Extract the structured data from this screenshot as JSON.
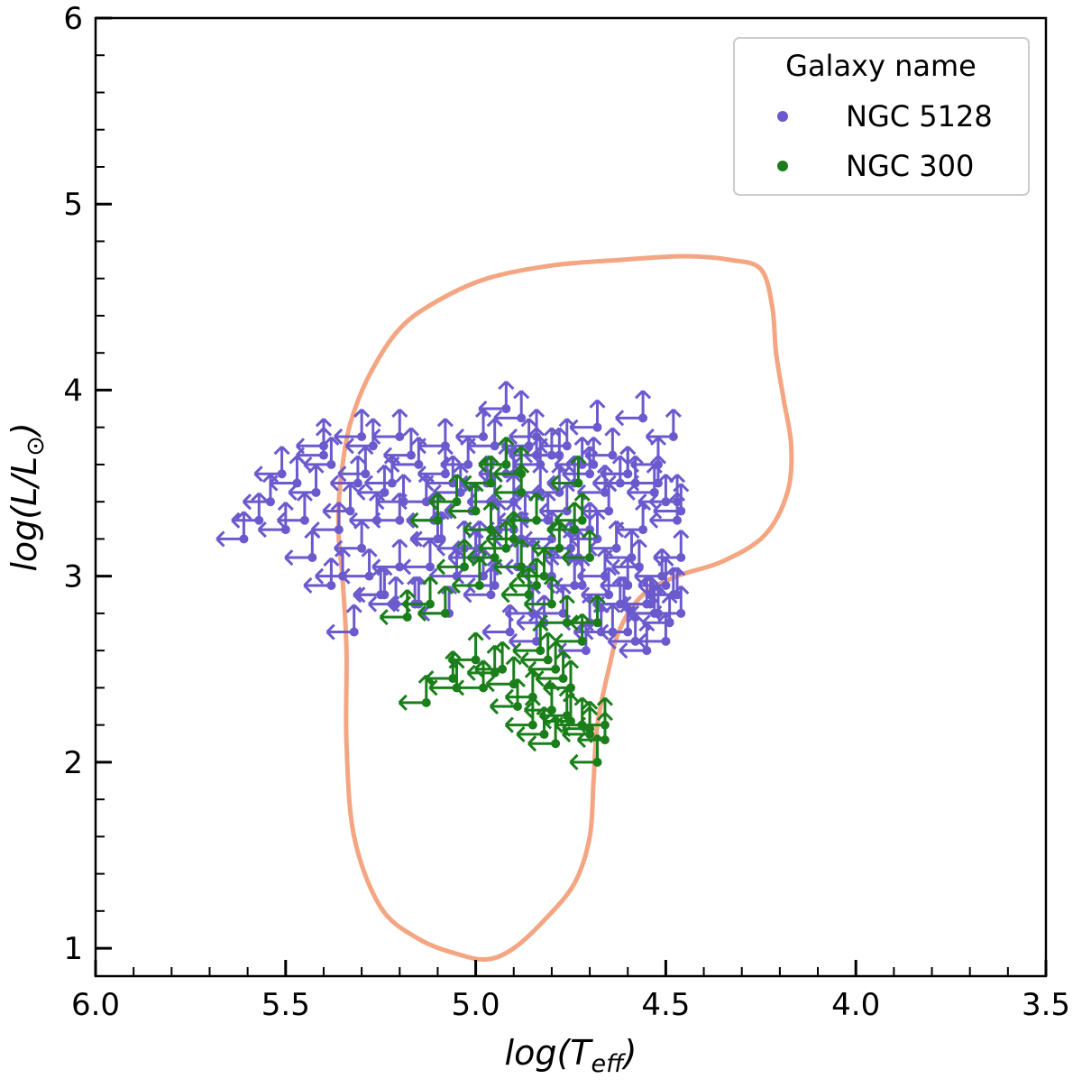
{
  "chart_data": {
    "type": "scatter",
    "title": "",
    "xlabel_prefix": "log(T",
    "xlabel_sub": "eff",
    "xlabel_suffix": ")",
    "ylabel_prefix": "log(L/L",
    "ylabel_sub": "⊙",
    "ylabel_suffix": ")",
    "xlim": [
      6.0,
      3.5
    ],
    "ylim": [
      0.85,
      6.0
    ],
    "x_inverted": true,
    "xticks": [
      "6.0",
      "5.5",
      "5.0",
      "4.5",
      "4.0",
      "3.5"
    ],
    "xtick_values": [
      6.0,
      5.5,
      5.0,
      4.5,
      4.0,
      3.5
    ],
    "yticks": [
      "1",
      "2",
      "3",
      "4",
      "5",
      "6"
    ],
    "ytick_values": [
      1,
      2,
      3,
      4,
      5,
      6
    ],
    "grid": false,
    "legend": {
      "title": "Galaxy name",
      "placement": "top-right",
      "entries": [
        {
          "label": "NGC 5128",
          "color": "#6a5acd"
        },
        {
          "label": "NGC 300",
          "color": "#1a7f1a"
        }
      ]
    },
    "marker_style": "upper-limit arrows (left in Teff, up in L)",
    "contour": {
      "color": "#f4a582",
      "points": [
        [
          5.33,
          3.82
        ],
        [
          5.28,
          4.08
        ],
        [
          5.2,
          4.33
        ],
        [
          5.1,
          4.48
        ],
        [
          4.97,
          4.6
        ],
        [
          4.8,
          4.67
        ],
        [
          4.62,
          4.7
        ],
        [
          4.45,
          4.72
        ],
        [
          4.33,
          4.7
        ],
        [
          4.25,
          4.65
        ],
        [
          4.22,
          4.45
        ],
        [
          4.21,
          4.2
        ],
        [
          4.19,
          3.95
        ],
        [
          4.17,
          3.7
        ],
        [
          4.18,
          3.45
        ],
        [
          4.24,
          3.22
        ],
        [
          4.35,
          3.08
        ],
        [
          4.47,
          3.0
        ],
        [
          4.56,
          2.9
        ],
        [
          4.62,
          2.72
        ],
        [
          4.65,
          2.5
        ],
        [
          4.68,
          2.2
        ],
        [
          4.69,
          1.9
        ],
        [
          4.7,
          1.6
        ],
        [
          4.74,
          1.35
        ],
        [
          4.82,
          1.15
        ],
        [
          4.9,
          1.0
        ],
        [
          4.97,
          0.94
        ],
        [
          5.05,
          0.97
        ],
        [
          5.15,
          1.05
        ],
        [
          5.25,
          1.22
        ],
        [
          5.32,
          1.6
        ],
        [
          5.34,
          2.1
        ],
        [
          5.34,
          2.6
        ],
        [
          5.35,
          2.98
        ],
        [
          5.36,
          3.2
        ],
        [
          5.36,
          3.4
        ],
        [
          5.35,
          3.6
        ],
        [
          5.33,
          3.82
        ]
      ]
    },
    "series": [
      {
        "name": "NGC 5128",
        "color": "#6a5acd",
        "x": [
          5.61,
          5.54,
          5.47,
          5.42,
          5.38,
          5.33,
          5.29,
          5.26,
          5.22,
          5.19,
          5.15,
          5.11,
          5.08,
          5.04,
          5.01,
          4.97,
          4.94,
          4.9,
          4.87,
          4.83,
          4.8,
          4.76,
          4.73,
          4.7,
          4.66,
          4.63,
          4.6,
          4.57,
          4.54,
          4.51,
          4.48,
          4.46,
          5.57,
          5.51,
          5.45,
          5.4,
          5.36,
          5.31,
          5.27,
          5.24,
          5.2,
          5.17,
          5.13,
          5.09,
          5.06,
          5.02,
          4.99,
          4.95,
          4.92,
          4.88,
          4.85,
          4.81,
          4.78,
          4.75,
          4.72,
          4.68,
          4.65,
          4.62,
          4.59,
          4.56,
          4.53,
          4.5,
          4.47,
          5.35,
          5.3,
          5.25,
          5.2,
          5.15,
          5.1,
          5.05,
          5.0,
          4.95,
          4.9,
          4.85,
          4.8,
          4.75,
          4.7,
          4.65,
          4.6,
          4.55,
          4.5,
          4.46,
          5.5,
          5.43,
          5.38,
          5.28,
          5.21,
          5.12,
          5.03,
          4.96,
          4.89,
          4.82,
          4.74,
          4.67,
          4.61,
          4.55,
          4.49,
          5.32,
          5.24,
          5.16,
          5.07,
          4.98,
          4.91,
          4.84,
          4.77,
          4.71,
          4.64,
          4.58,
          4.52,
          4.47,
          4.92,
          4.88,
          4.84,
          4.8,
          4.76,
          4.72,
          4.68,
          4.64,
          4.6,
          4.56,
          4.52,
          4.48,
          4.95,
          4.9,
          4.83,
          4.74,
          4.66,
          4.58,
          4.5,
          4.46,
          4.92,
          4.84,
          4.7,
          4.62,
          4.53,
          4.47,
          5.3,
          5.4,
          5.2,
          5.08,
          4.98,
          4.86,
          4.78,
          4.69,
          4.6,
          4.52
        ],
        "y": [
          3.2,
          3.4,
          3.5,
          3.45,
          3.6,
          3.35,
          3.55,
          3.3,
          3.5,
          3.4,
          3.6,
          3.3,
          3.55,
          3.45,
          3.35,
          3.5,
          3.25,
          3.4,
          3.3,
          3.45,
          3.2,
          3.35,
          3.1,
          3.25,
          3.0,
          3.15,
          2.95,
          3.05,
          2.85,
          3.0,
          2.9,
          3.1,
          3.3,
          3.55,
          3.3,
          3.65,
          3.25,
          3.5,
          3.7,
          3.45,
          3.3,
          3.65,
          3.4,
          3.2,
          3.5,
          3.6,
          3.15,
          3.4,
          3.55,
          3.2,
          3.05,
          3.3,
          3.45,
          3.1,
          2.95,
          3.2,
          3.35,
          2.85,
          3.1,
          3.25,
          2.8,
          2.95,
          3.3,
          3.0,
          3.15,
          2.9,
          3.05,
          2.85,
          3.2,
          3.0,
          3.1,
          2.95,
          3.25,
          2.8,
          3.0,
          3.15,
          2.75,
          2.9,
          2.7,
          2.85,
          2.65,
          2.8,
          3.25,
          3.1,
          2.95,
          3.0,
          2.85,
          3.05,
          3.15,
          2.9,
          3.05,
          2.75,
          2.95,
          2.7,
          2.85,
          2.6,
          2.75,
          2.7,
          2.9,
          2.85,
          2.8,
          3.0,
          2.7,
          2.65,
          2.8,
          2.6,
          2.7,
          2.65,
          2.8,
          2.9,
          3.9,
          3.85,
          3.75,
          3.65,
          3.7,
          3.6,
          3.8,
          3.65,
          3.55,
          3.85,
          3.6,
          3.75,
          3.7,
          3.55,
          3.6,
          3.5,
          3.45,
          3.5,
          3.4,
          3.35,
          3.6,
          3.65,
          3.55,
          3.5,
          3.45,
          3.4,
          3.75,
          3.7,
          3.75,
          3.7,
          3.75,
          3.7,
          3.65,
          3.6,
          3.55,
          3.5
        ]
      },
      {
        "name": "NGC 300",
        "color": "#1a7f1a",
        "x": [
          5.1,
          5.05,
          4.96,
          4.92,
          4.88,
          4.84,
          5.18,
          5.12,
          5.03,
          4.99,
          4.95,
          4.9,
          4.86,
          4.82,
          4.78,
          4.74,
          4.72,
          4.7,
          5.08,
          5.0,
          4.96,
          4.92,
          4.88,
          4.84,
          4.8,
          4.76,
          4.72,
          4.68,
          5.13,
          5.06,
          4.98,
          4.93,
          4.89,
          4.85,
          4.82,
          4.79,
          4.76,
          4.72,
          4.7,
          4.68,
          4.66,
          5.05,
          5.0,
          4.95,
          4.9,
          4.85,
          4.8,
          4.75,
          4.7,
          4.66,
          4.83,
          4.81,
          4.79,
          4.77,
          4.75,
          4.88,
          4.73
        ],
        "y": [
          3.3,
          3.4,
          3.5,
          3.6,
          3.45,
          3.3,
          2.78,
          2.85,
          3.05,
          2.95,
          3.1,
          3.2,
          2.9,
          3.0,
          3.15,
          3.25,
          3.3,
          3.1,
          2.8,
          3.35,
          3.25,
          3.15,
          3.05,
          2.95,
          2.85,
          2.75,
          2.65,
          2.75,
          2.32,
          2.45,
          2.4,
          2.5,
          2.3,
          2.2,
          2.15,
          2.1,
          2.25,
          2.2,
          2.15,
          2.0,
          2.2,
          2.4,
          2.55,
          2.48,
          2.42,
          2.35,
          2.28,
          2.22,
          2.18,
          2.12,
          2.6,
          2.55,
          2.5,
          2.45,
          2.4,
          3.55,
          3.5
        ]
      }
    ]
  }
}
